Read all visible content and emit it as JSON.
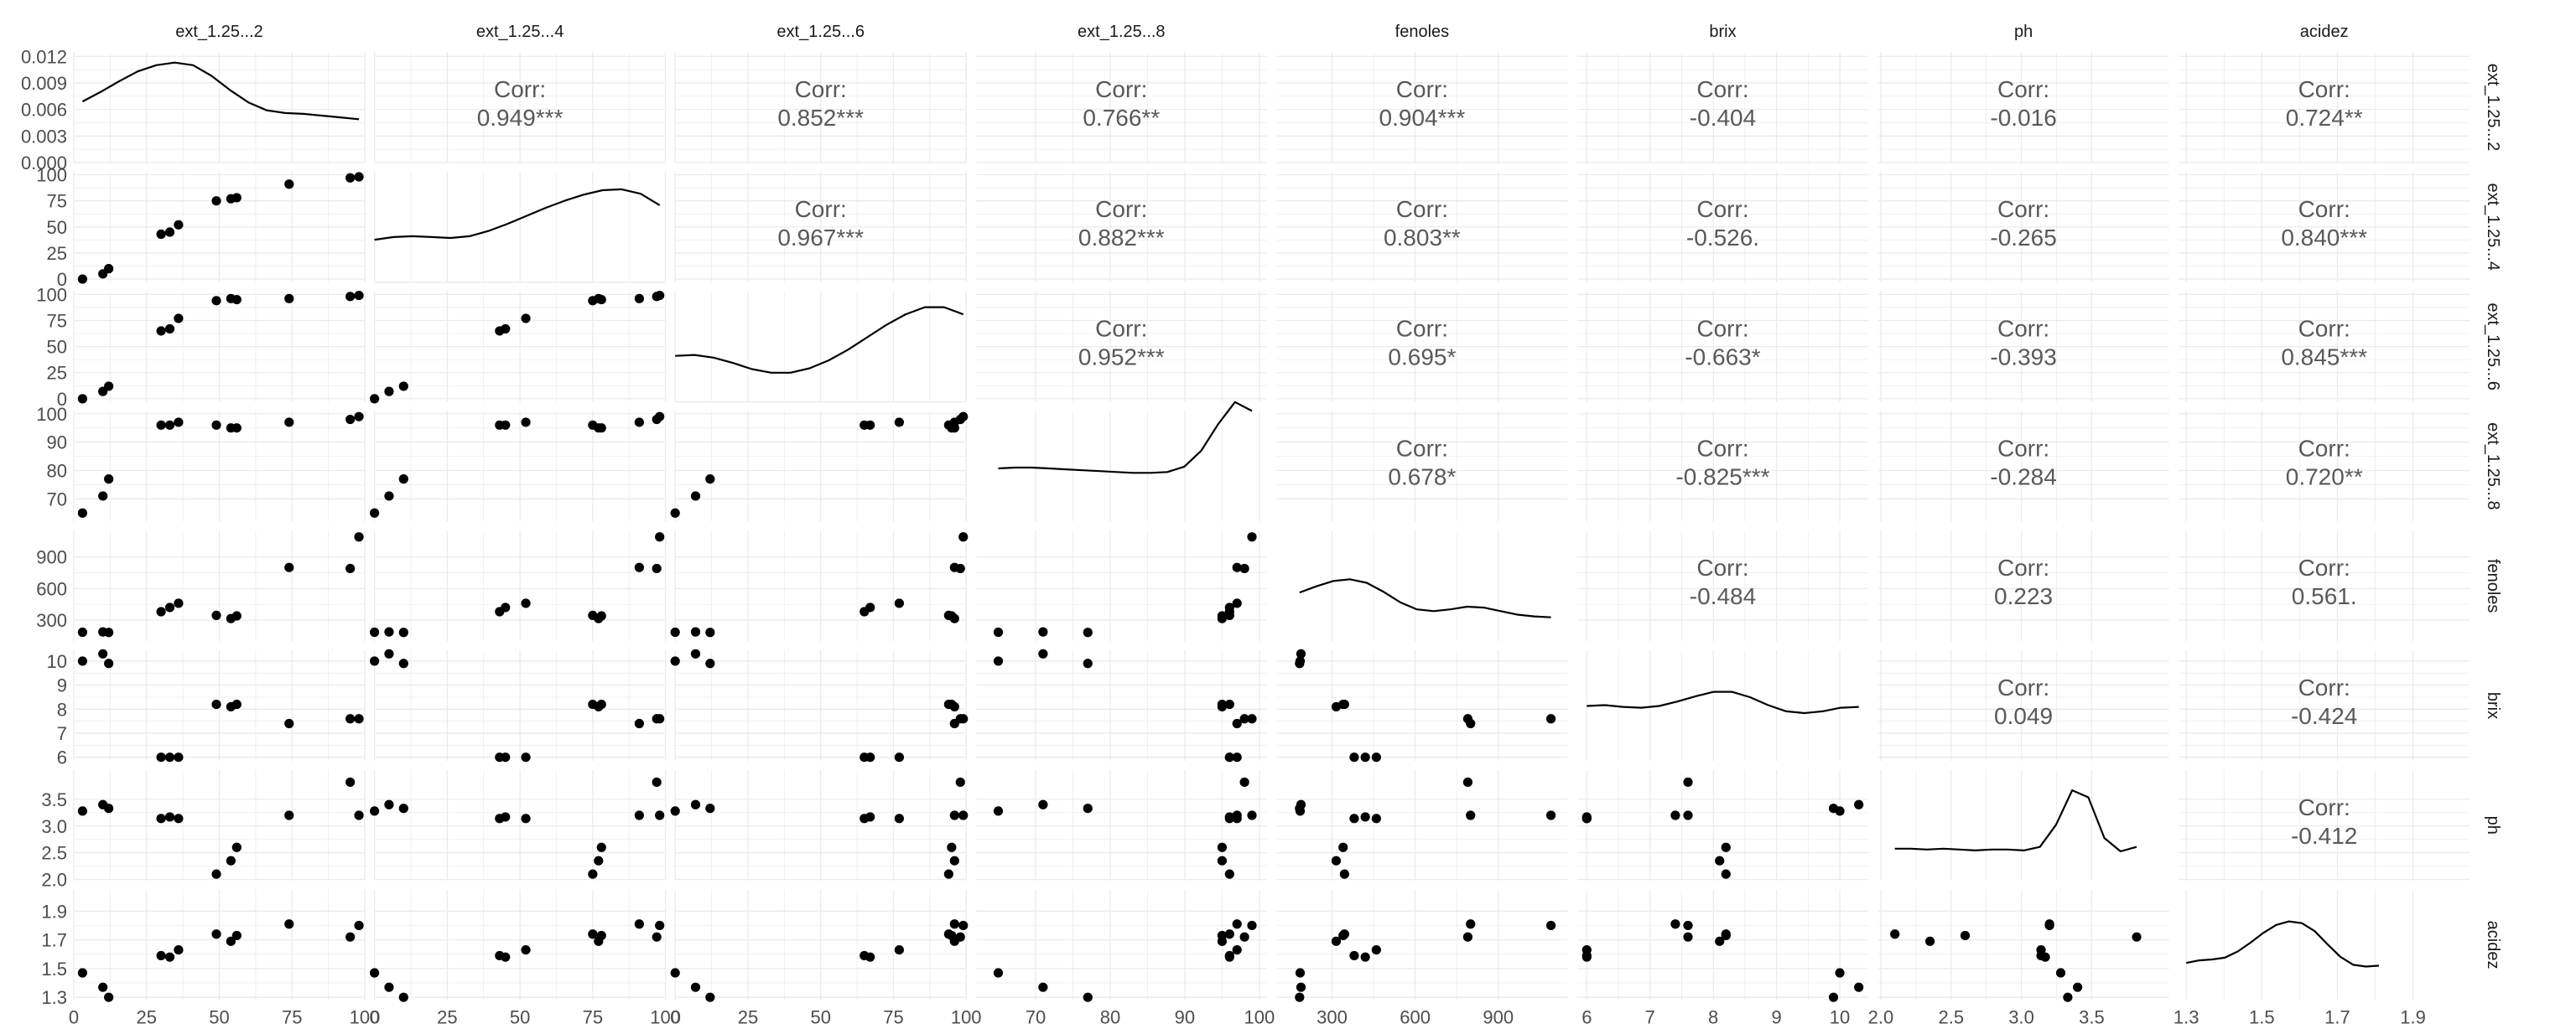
{
  "chart_data": {
    "type": "pairs-matrix",
    "variables": [
      "ext_1.25...2",
      "ext_1.25...4",
      "ext_1.25...6",
      "ext_1.25...8",
      "fenoles",
      "brix",
      "ph",
      "acidez"
    ],
    "row_strip_labels": [
      "ext_1.25...2",
      "ext_1.25...4",
      "ext_1.25...6",
      "ext_1.25...8",
      "fenoles",
      "brix",
      "ph",
      "acidez"
    ],
    "corr_label": "Corr:",
    "correlations": [
      {
        "row": 0,
        "col": 1,
        "value": "0.949***"
      },
      {
        "row": 0,
        "col": 2,
        "value": "0.852***"
      },
      {
        "row": 0,
        "col": 3,
        "value": "0.766**"
      },
      {
        "row": 0,
        "col": 4,
        "value": "0.904***"
      },
      {
        "row": 0,
        "col": 5,
        "value": "-0.404"
      },
      {
        "row": 0,
        "col": 6,
        "value": "-0.016"
      },
      {
        "row": 0,
        "col": 7,
        "value": "0.724**"
      },
      {
        "row": 1,
        "col": 2,
        "value": "0.967***"
      },
      {
        "row": 1,
        "col": 3,
        "value": "0.882***"
      },
      {
        "row": 1,
        "col": 4,
        "value": "0.803**"
      },
      {
        "row": 1,
        "col": 5,
        "value": "-0.526."
      },
      {
        "row": 1,
        "col": 6,
        "value": "-0.265"
      },
      {
        "row": 1,
        "col": 7,
        "value": "0.840***"
      },
      {
        "row": 2,
        "col": 3,
        "value": "0.952***"
      },
      {
        "row": 2,
        "col": 4,
        "value": "0.695*"
      },
      {
        "row": 2,
        "col": 5,
        "value": "-0.663*"
      },
      {
        "row": 2,
        "col": 6,
        "value": "-0.393"
      },
      {
        "row": 2,
        "col": 7,
        "value": "0.845***"
      },
      {
        "row": 3,
        "col": 4,
        "value": "0.678*"
      },
      {
        "row": 3,
        "col": 5,
        "value": "-0.825***"
      },
      {
        "row": 3,
        "col": 6,
        "value": "-0.284"
      },
      {
        "row": 3,
        "col": 7,
        "value": "0.720**"
      },
      {
        "row": 4,
        "col": 5,
        "value": "-0.484"
      },
      {
        "row": 4,
        "col": 6,
        "value": "0.223"
      },
      {
        "row": 4,
        "col": 7,
        "value": "0.561."
      },
      {
        "row": 5,
        "col": 6,
        "value": "0.049"
      },
      {
        "row": 5,
        "col": 7,
        "value": "-0.424"
      },
      {
        "row": 6,
        "col": 7,
        "value": "-0.412"
      }
    ],
    "col_axes": [
      {
        "range": [
          0,
          100
        ],
        "ticks": [
          0,
          25,
          50,
          75,
          100
        ],
        "tick_labels": [
          "0",
          "25",
          "50",
          "75",
          "100"
        ]
      },
      {
        "range": [
          0,
          100
        ],
        "ticks": [
          0,
          25,
          50,
          75,
          100
        ],
        "tick_labels": [
          "0",
          "25",
          "50",
          "75",
          "100"
        ]
      },
      {
        "range": [
          0,
          100
        ],
        "ticks": [
          0,
          25,
          50,
          75,
          100
        ],
        "tick_labels": [
          "0",
          "25",
          "50",
          "75",
          "100"
        ]
      },
      {
        "range": [
          62,
          101
        ],
        "ticks": [
          70,
          80,
          90,
          100
        ],
        "tick_labels": [
          "70",
          "80",
          "90",
          "100"
        ]
      },
      {
        "range": [
          100,
          1150
        ],
        "ticks": [
          300,
          600,
          900
        ],
        "tick_labels": [
          "300",
          "600",
          "900"
        ]
      },
      {
        "range": [
          5.85,
          10.45
        ],
        "ticks": [
          6,
          7,
          8,
          9,
          10
        ],
        "tick_labels": [
          "6",
          "7",
          "8",
          "9",
          "10"
        ]
      },
      {
        "range": [
          1.98,
          4.05
        ],
        "ticks": [
          2.0,
          2.5,
          3.0,
          3.5
        ],
        "tick_labels": [
          "2.0",
          "2.5",
          "3.0",
          "3.5"
        ]
      },
      {
        "range": [
          1.28,
          2.05
        ],
        "ticks": [
          1.3,
          1.5,
          1.7,
          1.9
        ],
        "tick_labels": [
          "1.3",
          "1.5",
          "1.7",
          "1.9"
        ]
      }
    ],
    "row_axes": [
      {
        "range": [
          0,
          0.0125
        ],
        "ticks": [
          0,
          0.003,
          0.006,
          0.009,
          0.012
        ],
        "tick_labels": [
          "0.000",
          "0.003",
          "0.006",
          "0.009",
          "0.012"
        ]
      },
      {
        "range": [
          -3,
          103
        ],
        "ticks": [
          0,
          25,
          50,
          75,
          100
        ],
        "tick_labels": [
          "0",
          "25",
          "50",
          "75",
          "100"
        ]
      },
      {
        "range": [
          -3,
          103
        ],
        "ticks": [
          0,
          25,
          50,
          75,
          100
        ],
        "tick_labels": [
          "0",
          "25",
          "50",
          "75",
          "100"
        ]
      },
      {
        "range": [
          62,
          101
        ],
        "ticks": [
          70,
          80,
          90,
          100
        ],
        "tick_labels": [
          "70",
          "80",
          "90",
          "100"
        ]
      },
      {
        "range": [
          100,
          1150
        ],
        "ticks": [
          300,
          600,
          900
        ],
        "tick_labels": [
          "300",
          "600",
          "900"
        ]
      },
      {
        "range": [
          5.85,
          10.45
        ],
        "ticks": [
          6,
          7,
          8,
          9,
          10
        ],
        "tick_labels": [
          "6",
          "7",
          "8",
          "9",
          "10"
        ]
      },
      {
        "range": [
          1.98,
          4.05
        ],
        "ticks": [
          2.0,
          2.5,
          3.0,
          3.5
        ],
        "tick_labels": [
          "2.0",
          "2.5",
          "3.0",
          "3.5"
        ]
      },
      {
        "range": [
          1.28,
          2.05
        ],
        "ticks": [
          1.3,
          1.5,
          1.7,
          1.9
        ],
        "tick_labels": [
          "1.3",
          "1.5",
          "1.7",
          "1.9"
        ]
      }
    ],
    "observations": [
      [
        3,
        0,
        0,
        65,
        185,
        10.0,
        3.28,
        1.47
      ],
      [
        10,
        5,
        7,
        71,
        188,
        10.3,
        3.4,
        1.37
      ],
      [
        12,
        10,
        12,
        77,
        183,
        9.9,
        3.33,
        1.3
      ],
      [
        30,
        43,
        65,
        96,
        380,
        6.0,
        3.14,
        1.59
      ],
      [
        33,
        45,
        67,
        96,
        420,
        6.0,
        3.17,
        1.58
      ],
      [
        36,
        52,
        77,
        97,
        460,
        6.0,
        3.14,
        1.63
      ],
      [
        49,
        75,
        94,
        96,
        345,
        8.2,
        2.1,
        1.74
      ],
      [
        54,
        77,
        96,
        95,
        315,
        8.1,
        2.35,
        1.69
      ],
      [
        56,
        78,
        95,
        95,
        340,
        8.2,
        2.6,
        1.73
      ],
      [
        74,
        91,
        96,
        97,
        800,
        7.4,
        3.2,
        1.81
      ],
      [
        95,
        97,
        98,
        98,
        790,
        7.6,
        3.82,
        1.72
      ],
      [
        98,
        98,
        99,
        99,
        1090,
        7.6,
        3.2,
        1.8
      ]
    ],
    "densities": [
      [
        0.0069,
        0.008,
        0.0092,
        0.0103,
        0.011,
        0.0113,
        0.011,
        0.0098,
        0.0082,
        0.0068,
        0.0059,
        0.0056,
        0.0055,
        0.0053,
        0.0051,
        0.0049
      ],
      [
        0.0048,
        0.0051,
        0.0052,
        0.0051,
        0.005,
        0.0052,
        0.0058,
        0.0066,
        0.0075,
        0.0084,
        0.0092,
        0.0099,
        0.0104,
        0.0105,
        0.01,
        0.0087
      ],
      [
        0.0052,
        0.0053,
        0.005,
        0.0044,
        0.0037,
        0.0033,
        0.0033,
        0.0038,
        0.0047,
        0.0059,
        0.0073,
        0.0087,
        0.0099,
        0.0107,
        0.0107,
        0.0099
      ],
      [
        0.006,
        0.0061,
        0.0061,
        0.006,
        0.0059,
        0.0058,
        0.0057,
        0.0056,
        0.0055,
        0.0055,
        0.0056,
        0.0062,
        0.008,
        0.011,
        0.0135,
        0.0125
      ],
      [
        0.0055,
        0.0062,
        0.0068,
        0.007,
        0.0066,
        0.0056,
        0.0044,
        0.0036,
        0.0034,
        0.0036,
        0.0039,
        0.0038,
        0.0034,
        0.003,
        0.0028,
        0.0027
      ],
      [
        0.0062,
        0.0063,
        0.0061,
        0.006,
        0.0062,
        0.0067,
        0.0073,
        0.0078,
        0.0078,
        0.0072,
        0.0063,
        0.0056,
        0.0054,
        0.0056,
        0.006,
        0.0061
      ],
      [
        0.0036,
        0.0036,
        0.0035,
        0.0036,
        0.0035,
        0.0034,
        0.0035,
        0.0035,
        0.0034,
        0.0038,
        0.0063,
        0.0102,
        0.0094,
        0.0048,
        0.0033,
        0.0038
      ],
      [
        0.0042,
        0.0045,
        0.0046,
        0.0048,
        0.0055,
        0.0065,
        0.0076,
        0.0085,
        0.0089,
        0.0087,
        0.0078,
        0.0063,
        0.0049,
        0.004,
        0.0038,
        0.0039
      ]
    ],
    "grid": true,
    "point_color": "#000000",
    "line_color": "#000000",
    "grid_color": "#ebebeb"
  }
}
